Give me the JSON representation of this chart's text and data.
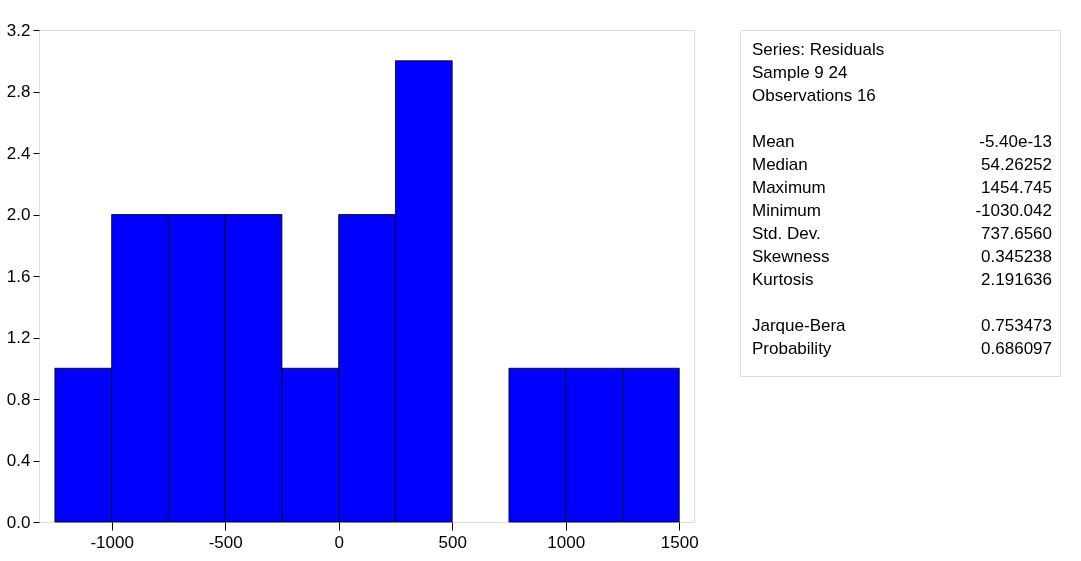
{
  "chart_data": [
    {
      "type": "histogram",
      "bins": [
        -1250,
        -1000,
        -750,
        -500,
        -250,
        0,
        250,
        500,
        750,
        1000,
        1250,
        1500
      ],
      "values": [
        1,
        2,
        2,
        2,
        1,
        2,
        3,
        0,
        1,
        1,
        1
      ],
      "color": "#0000ff",
      "xlim": [
        -1320,
        1565
      ],
      "xticks": [
        -1000,
        -500,
        0,
        500,
        1000,
        1500
      ],
      "ylim": [
        0,
        3.2
      ],
      "yticks": [
        {
          "value": 0,
          "label": "0.0"
        },
        {
          "value": 0.4,
          "label": "0.4"
        },
        {
          "value": 0.8,
          "label": "0.8"
        },
        {
          "value": 1.2,
          "label": "1.2"
        },
        {
          "value": 1.6,
          "label": "1.6"
        },
        {
          "value": 2.0,
          "label": "2.0"
        },
        {
          "value": 2.4,
          "label": "2.4"
        },
        {
          "value": 2.8,
          "label": "2.8"
        },
        {
          "value": 3.2,
          "label": "3.2"
        }
      ],
      "grid": false
    },
    {
      "type": "other",
      "annotations": [
        "Series: Residuals",
        "Sample 9 24",
        "Observations 16",
        "Mean",
        "-5.40e-13",
        "Median",
        "54.26252",
        "Maximum",
        "1454.745",
        "Minimum",
        "-1030.042",
        "Std. Dev.",
        "737.6560",
        "Skewness",
        "0.345238",
        "Kurtosis",
        "2.191636",
        "Jarque-Bera",
        "0.753473",
        "Probability",
        "0.686097"
      ]
    }
  ]
}
